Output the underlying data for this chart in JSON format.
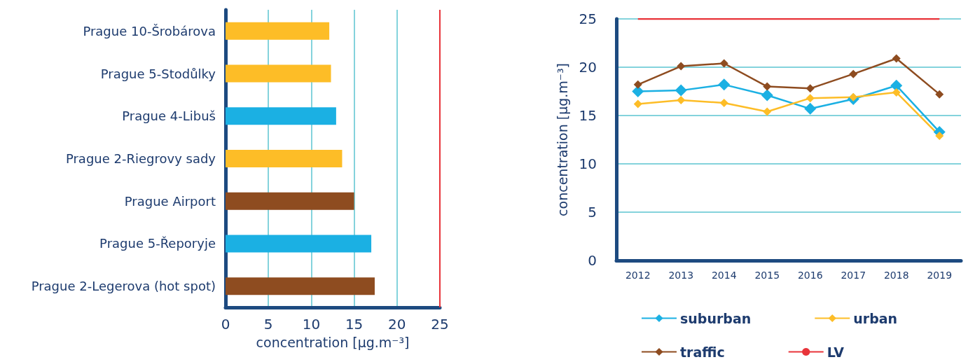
{
  "chart_data": [
    {
      "type": "bar",
      "orientation": "horizontal",
      "xlabel": "concentration [µg.m⁻³]",
      "categories": [
        "Prague 10-Šrobárova",
        "Prague 5-Stodůlky",
        "Prague 4-Libuš",
        "Prague 2-Riegrovy sady",
        "Prague Airport",
        "Prague 5-Řeporyje",
        "Prague 2-Legerova (hot spot)"
      ],
      "values": [
        12.1,
        12.3,
        12.9,
        13.6,
        15.0,
        17.0,
        17.4
      ],
      "colors": [
        "#fdbd27",
        "#fdbd27",
        "#1bb0e3",
        "#fdbd27",
        "#8e4c20",
        "#1bb0e3",
        "#8e4c20"
      ],
      "xlim": [
        0,
        25
      ],
      "xticks": [
        0,
        5,
        10,
        15,
        20,
        25
      ],
      "grid": "x",
      "ref_lines": [
        {
          "axis": "x",
          "value": 25,
          "color": "#e8343a"
        }
      ]
    },
    {
      "type": "line",
      "ylabel": "concentration [µg.m⁻³]",
      "categories": [
        "2012",
        "2013",
        "2014",
        "2015",
        "2016",
        "2017",
        "2018",
        "2019"
      ],
      "series": [
        {
          "name": "suburban",
          "color": "#1bb0e3",
          "values": [
            17.5,
            17.6,
            18.2,
            17.1,
            15.7,
            16.7,
            18.1,
            13.3
          ]
        },
        {
          "name": "urban",
          "color": "#fdbd27",
          "values": [
            16.2,
            16.6,
            16.3,
            15.4,
            16.8,
            16.9,
            17.4,
            12.9
          ]
        },
        {
          "name": "traffic",
          "color": "#8e4c20",
          "values": [
            18.2,
            20.1,
            20.4,
            18.0,
            17.8,
            19.3,
            20.9,
            17.2
          ]
        },
        {
          "name": "LV",
          "color": "#e8343a",
          "marker": "none",
          "values": [
            25,
            25,
            25,
            25,
            25,
            25,
            25,
            25
          ]
        }
      ],
      "ylim": [
        0,
        25
      ],
      "yticks": [
        0,
        5,
        10,
        15,
        20,
        25
      ],
      "grid": "y",
      "marker": "diamond",
      "legend": "bottom"
    }
  ]
}
